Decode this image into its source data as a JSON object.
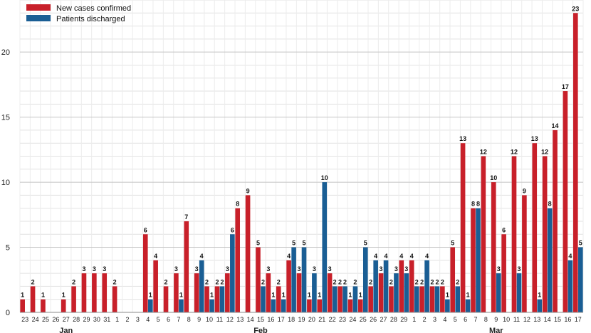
{
  "chart_data": {
    "type": "bar",
    "colors": {
      "cases": "#c8202a",
      "discharged": "#1a5e94"
    },
    "ylim": [
      0,
      24
    ],
    "yticks": [
      0,
      5,
      10,
      15,
      20
    ],
    "grid": true,
    "legend_placement": "top-left",
    "categories": [
      "23",
      "24",
      "25",
      "26",
      "27",
      "28",
      "29",
      "30",
      "31",
      "1",
      "2",
      "3",
      "4",
      "5",
      "6",
      "7",
      "8",
      "9",
      "10",
      "11",
      "12",
      "13",
      "14",
      "15",
      "16",
      "17",
      "18",
      "19",
      "20",
      "21",
      "22",
      "23",
      "24",
      "25",
      "26",
      "27",
      "28",
      "29",
      "1",
      "2",
      "3",
      "4",
      "5",
      "6",
      "7",
      "8",
      "9",
      "10",
      "11",
      "12",
      "13",
      "14",
      "15",
      "16",
      "17"
    ],
    "months": [
      {
        "label": "Jan",
        "start": 0,
        "end": 8
      },
      {
        "label": "Feb",
        "start": 9,
        "end": 37
      },
      {
        "label": "Mar",
        "start": 38,
        "end": 54
      }
    ],
    "series": [
      {
        "name": "New cases confirmed",
        "values": [
          1,
          2,
          1,
          0,
          1,
          2,
          3,
          3,
          3,
          2,
          0,
          0,
          6,
          4,
          2,
          3,
          7,
          3,
          2,
          2,
          3,
          8,
          9,
          5,
          3,
          2,
          4,
          3,
          1,
          1,
          3,
          2,
          1,
          1,
          2,
          3,
          2,
          4,
          4,
          2,
          2,
          2,
          5,
          13,
          8,
          12,
          10,
          6,
          12,
          9,
          13,
          12,
          14,
          17,
          23
        ]
      },
      {
        "name": "Patients discharged",
        "values": [
          0,
          0,
          0,
          0,
          0,
          0,
          0,
          0,
          0,
          0,
          0,
          0,
          1,
          0,
          0,
          1,
          0,
          4,
          1,
          2,
          6,
          0,
          0,
          2,
          1,
          1,
          5,
          5,
          3,
          10,
          2,
          2,
          2,
          5,
          4,
          4,
          3,
          3,
          2,
          4,
          2,
          1,
          2,
          1,
          8,
          0,
          3,
          0,
          3,
          0,
          1,
          8,
          0,
          4,
          5
        ]
      }
    ]
  }
}
